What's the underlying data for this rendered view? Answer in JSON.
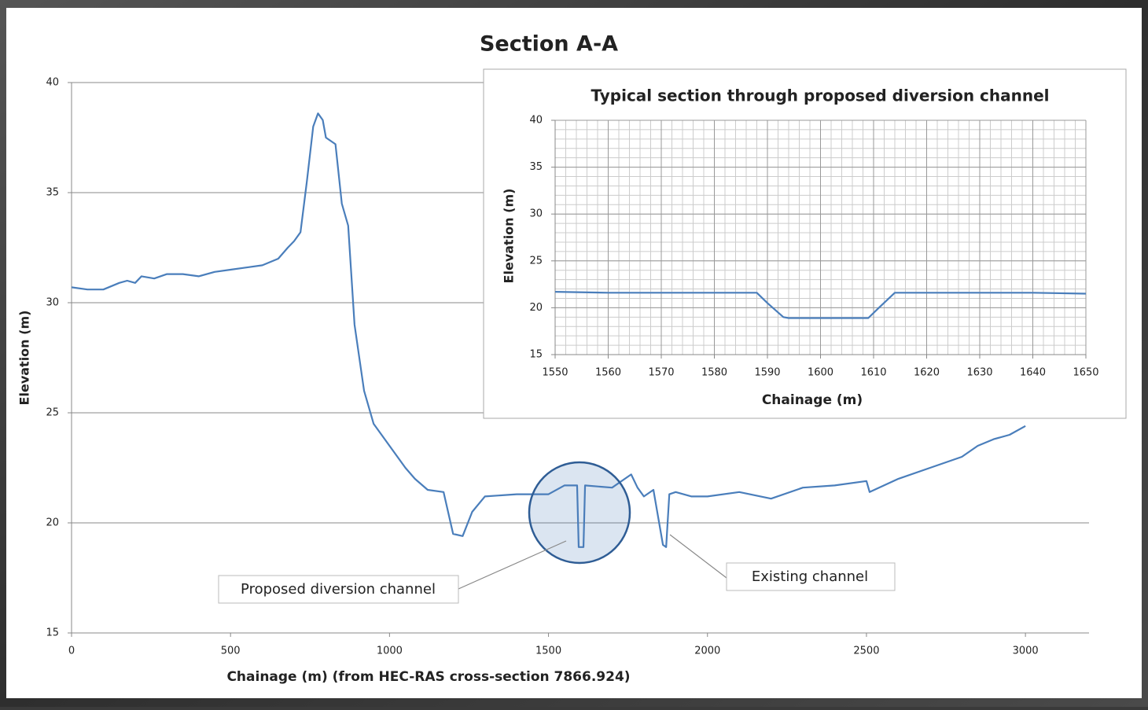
{
  "chart_data": [
    {
      "type": "line",
      "title": "Section A-A",
      "x_label": "Chainage (m) (from HEC-RAS cross-section 7866.924)",
      "y_label": "Elevation (m)",
      "x": [
        0,
        50,
        100,
        150,
        175,
        200,
        220,
        260,
        300,
        350,
        400,
        450,
        500,
        550,
        600,
        650,
        680,
        700,
        720,
        740,
        760,
        775,
        790,
        800,
        830,
        850,
        870,
        890,
        920,
        950,
        1000,
        1050,
        1080,
        1120,
        1170,
        1200,
        1230,
        1260,
        1300,
        1400,
        1500,
        1550,
        1590,
        1595,
        1610,
        1615,
        1700,
        1760,
        1780,
        1800,
        1830,
        1860,
        1870,
        1880,
        1900,
        1950,
        2000,
        2100,
        2200,
        2300,
        2400,
        2500,
        2510,
        2600,
        2700,
        2800,
        2850,
        2900,
        2950,
        3000
      ],
      "values": [
        30.7,
        30.6,
        30.6,
        30.9,
        31.0,
        30.9,
        31.2,
        31.1,
        31.3,
        31.3,
        31.2,
        31.4,
        31.5,
        31.6,
        31.7,
        32.0,
        32.5,
        32.8,
        33.2,
        35.5,
        38.0,
        38.6,
        38.3,
        37.5,
        37.2,
        34.5,
        33.5,
        29.0,
        26.0,
        24.5,
        23.5,
        22.5,
        22.0,
        21.5,
        21.4,
        19.5,
        19.4,
        20.5,
        21.2,
        21.3,
        21.3,
        21.7,
        21.7,
        18.9,
        18.9,
        21.7,
        21.6,
        22.2,
        21.6,
        21.2,
        21.5,
        19.0,
        18.9,
        21.3,
        21.4,
        21.2,
        21.2,
        21.4,
        21.1,
        21.6,
        21.7,
        21.9,
        21.4,
        22.0,
        22.5,
        23.0,
        23.5,
        23.8,
        24.0,
        24.4
      ],
      "color": "#4a7ebb",
      "xlim": [
        0,
        3200
      ],
      "xticks": [
        0,
        500,
        1000,
        1500,
        2000,
        2500,
        3000
      ],
      "ylim": [
        15,
        40
      ],
      "yticks": [
        15,
        20,
        25,
        30,
        35,
        40
      ],
      "grid": true,
      "annotations": [
        "Proposed diversion channel",
        "Existing channel"
      ]
    },
    {
      "type": "line",
      "title": "Typical section through proposed diversion channel",
      "x_label": "Chainage (m)",
      "y_label": "Elevation (m)",
      "x": [
        1550,
        1560,
        1588,
        1590,
        1593,
        1594,
        1609,
        1611,
        1614,
        1640,
        1650
      ],
      "values": [
        21.7,
        21.6,
        21.6,
        20.5,
        19.0,
        18.9,
        18.9,
        20.0,
        21.6,
        21.6,
        21.5
      ],
      "color": "#4a7ebb",
      "xlim": [
        1550,
        1650
      ],
      "xticks": [
        1550,
        1560,
        1570,
        1580,
        1590,
        1600,
        1610,
        1620,
        1630,
        1640,
        1650
      ],
      "ylim": [
        15,
        40
      ],
      "yticks": [
        15,
        20,
        25,
        30,
        35,
        40
      ],
      "grid": true,
      "minor_grid": true
    }
  ]
}
